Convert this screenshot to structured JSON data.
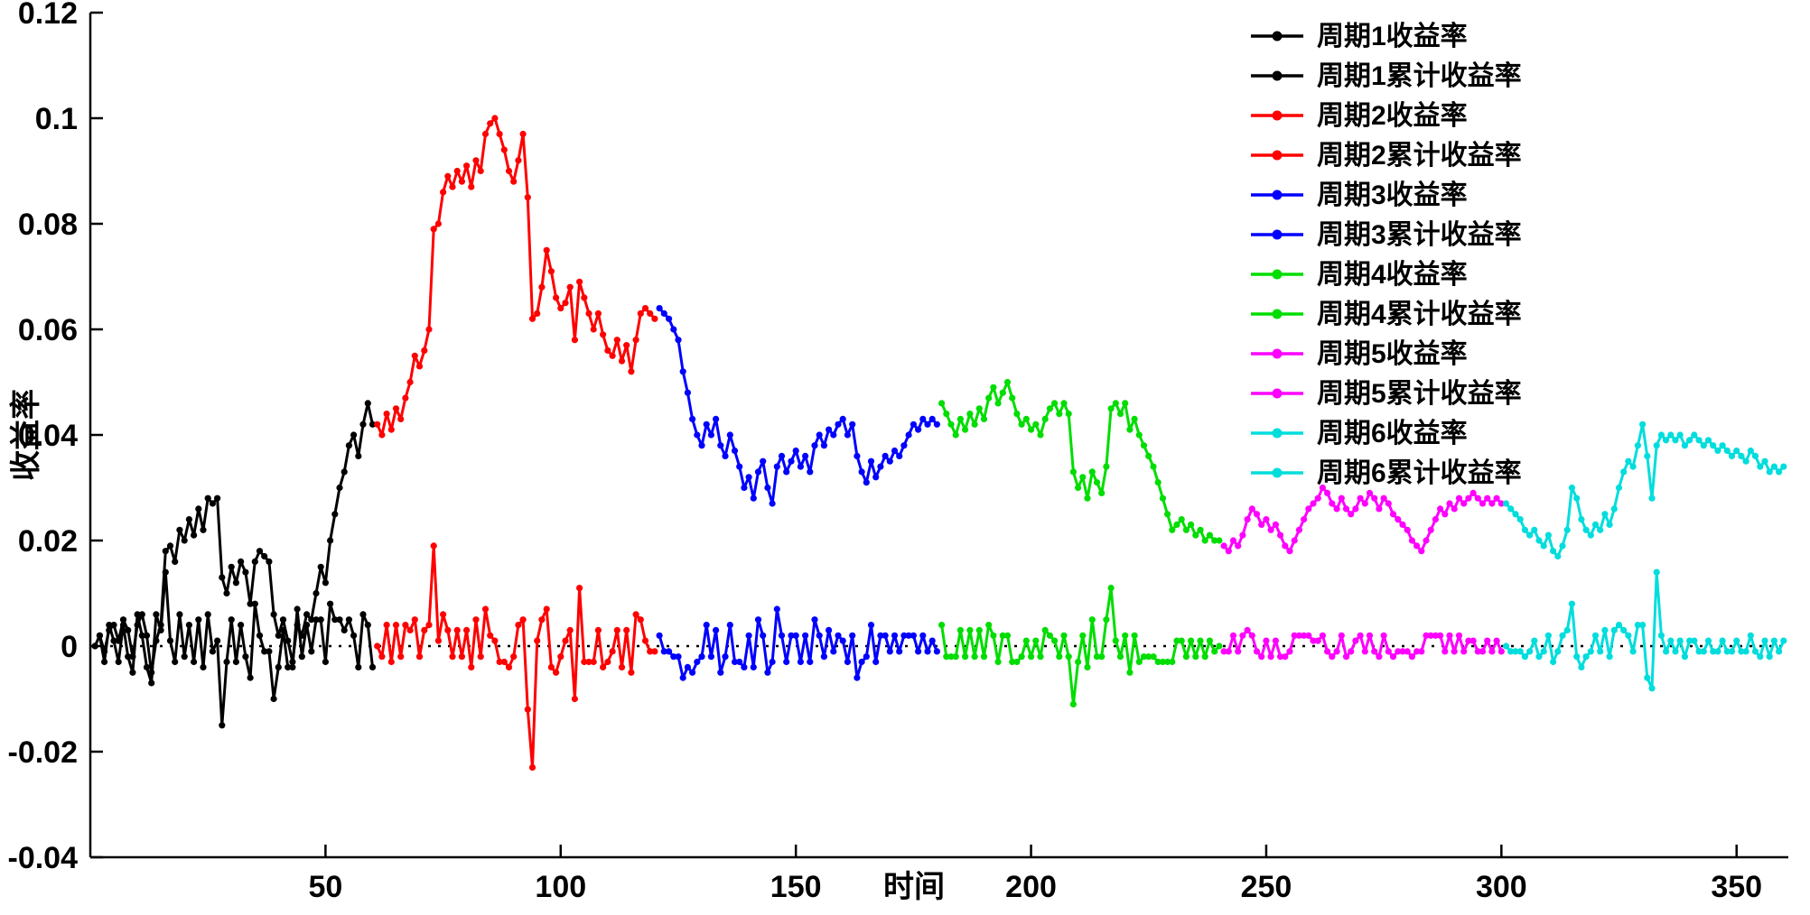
{
  "figure": {
    "background": "#ffffff",
    "axis_color": "#000000",
    "xlim": [
      0,
      361
    ],
    "ylim": [
      -0.04,
      0.12
    ],
    "x_ticks": [
      {
        "value": 50,
        "label": "50"
      },
      {
        "value": 100,
        "label": "100"
      },
      {
        "value": 150,
        "label": "150"
      },
      {
        "value": 200,
        "label": "200"
      },
      {
        "value": 250,
        "label": "250"
      },
      {
        "value": 300,
        "label": "300"
      },
      {
        "value": 350,
        "label": "350"
      }
    ],
    "y_ticks": [
      {
        "value": -0.04,
        "label": "-0.04"
      },
      {
        "value": -0.02,
        "label": "-0.02"
      },
      {
        "value": 0,
        "label": "0"
      },
      {
        "value": 0.02,
        "label": "0.02"
      },
      {
        "value": 0.04,
        "label": "0.04"
      },
      {
        "value": 0.06,
        "label": "0.06"
      },
      {
        "value": 0.08,
        "label": "0.08"
      },
      {
        "value": 0.1,
        "label": "0.1"
      },
      {
        "value": 0.12,
        "label": "0.12"
      }
    ]
  },
  "chart_data": {
    "type": "line",
    "title": "",
    "xlabel": "时间",
    "ylabel": "收益率",
    "xlim": [
      1,
      360
    ],
    "ylim": [
      -0.04,
      0.12
    ],
    "grid": false,
    "zero_line": true,
    "legend_position": "top-right",
    "marker": "point",
    "series": [
      {
        "name": "周期1收益率",
        "color": "#000000",
        "x_start": 1,
        "values": [
          0.0,
          0.002,
          -0.003,
          0.004,
          0.001,
          -0.003,
          0.004,
          -0.002,
          -0.005,
          0.006,
          0.002,
          -0.004,
          -0.007,
          0.006,
          0.003,
          0.014,
          0.001,
          -0.003,
          0.006,
          -0.002,
          0.004,
          -0.003,
          0.005,
          -0.004,
          0.006,
          -0.001,
          0.001,
          -0.015,
          -0.003,
          0.005,
          -0.003,
          0.004,
          -0.002,
          -0.006,
          0.008,
          0.002,
          -0.001,
          -0.001,
          -0.01,
          -0.004,
          0.003,
          -0.004,
          -0.004,
          0.007,
          -0.002,
          0.004,
          -0.001,
          0.005,
          0.005,
          -0.003,
          0.008,
          0.005,
          0.005,
          0.003,
          0.005,
          0.002,
          -0.004,
          0.006,
          0.004,
          -0.004
        ]
      },
      {
        "name": "周期1累计收益率",
        "color": "#000000",
        "x_start": 1,
        "values": [
          0.0,
          0.002,
          -0.001,
          0.003,
          0.004,
          0.001,
          0.005,
          0.003,
          -0.002,
          0.004,
          0.006,
          0.002,
          -0.005,
          0.001,
          0.004,
          0.018,
          0.019,
          0.016,
          0.022,
          0.02,
          0.024,
          0.021,
          0.026,
          0.022,
          0.028,
          0.027,
          0.028,
          0.013,
          0.01,
          0.015,
          0.012,
          0.016,
          0.014,
          0.008,
          0.016,
          0.018,
          0.017,
          0.016,
          0.006,
          0.002,
          0.005,
          0.001,
          -0.003,
          0.004,
          0.002,
          0.006,
          0.005,
          0.01,
          0.015,
          0.012,
          0.02,
          0.025,
          0.03,
          0.033,
          0.038,
          0.04,
          0.036,
          0.042,
          0.046,
          0.042
        ]
      },
      {
        "name": "周期2收益率",
        "color": "#ff0000",
        "x_start": 61,
        "values": [
          0.0,
          -0.002,
          0.004,
          -0.003,
          0.004,
          -0.002,
          0.004,
          0.003,
          0.005,
          -0.002,
          0.003,
          0.004,
          0.019,
          0.001,
          0.006,
          0.003,
          -0.002,
          0.003,
          -0.002,
          0.003,
          -0.004,
          0.005,
          -0.002,
          0.007,
          0.002,
          0.001,
          -0.003,
          -0.003,
          -0.004,
          -0.002,
          0.004,
          0.005,
          -0.012,
          -0.023,
          0.001,
          0.005,
          0.007,
          -0.004,
          -0.005,
          -0.002,
          0.001,
          0.003,
          -0.01,
          0.011,
          -0.003,
          -0.003,
          -0.003,
          0.003,
          -0.004,
          -0.003,
          -0.001,
          0.003,
          -0.004,
          0.003,
          -0.005,
          0.006,
          0.005,
          0.001,
          -0.001,
          -0.001
        ]
      },
      {
        "name": "周期2累计收益率",
        "color": "#ff0000",
        "x_start": 61,
        "values": [
          0.042,
          0.04,
          0.044,
          0.041,
          0.045,
          0.043,
          0.047,
          0.05,
          0.055,
          0.053,
          0.056,
          0.06,
          0.079,
          0.08,
          0.086,
          0.089,
          0.087,
          0.09,
          0.088,
          0.091,
          0.087,
          0.092,
          0.09,
          0.097,
          0.099,
          0.1,
          0.097,
          0.094,
          0.09,
          0.088,
          0.092,
          0.097,
          0.085,
          0.062,
          0.063,
          0.068,
          0.075,
          0.071,
          0.066,
          0.064,
          0.065,
          0.068,
          0.058,
          0.069,
          0.066,
          0.063,
          0.06,
          0.063,
          0.059,
          0.056,
          0.055,
          0.058,
          0.054,
          0.057,
          0.052,
          0.058,
          0.063,
          0.064,
          0.063,
          0.062
        ]
      },
      {
        "name": "周期3收益率",
        "color": "#0000ff",
        "x_start": 121,
        "values": [
          0.002,
          -0.001,
          -0.001,
          -0.002,
          -0.002,
          -0.006,
          -0.004,
          -0.005,
          -0.003,
          -0.002,
          0.004,
          -0.002,
          0.003,
          -0.005,
          -0.002,
          0.004,
          -0.003,
          -0.003,
          -0.004,
          0.002,
          -0.004,
          0.005,
          0.002,
          -0.005,
          -0.003,
          0.007,
          0.002,
          -0.003,
          0.002,
          0.002,
          -0.003,
          0.002,
          -0.003,
          0.005,
          0.002,
          -0.002,
          0.003,
          -0.001,
          0.002,
          0.001,
          -0.003,
          0.002,
          -0.006,
          -0.003,
          -0.002,
          0.004,
          -0.003,
          0.002,
          0.002,
          -0.001,
          0.002,
          -0.001,
          0.002,
          0.002,
          0.002,
          -0.001,
          0.002,
          -0.001,
          0.001,
          -0.001
        ]
      },
      {
        "name": "周期3累计收益率",
        "color": "#0000ff",
        "x_start": 121,
        "values": [
          0.064,
          0.063,
          0.062,
          0.06,
          0.058,
          0.052,
          0.048,
          0.043,
          0.04,
          0.038,
          0.042,
          0.04,
          0.043,
          0.038,
          0.036,
          0.04,
          0.037,
          0.034,
          0.03,
          0.032,
          0.028,
          0.033,
          0.035,
          0.03,
          0.027,
          0.034,
          0.036,
          0.033,
          0.035,
          0.037,
          0.034,
          0.036,
          0.033,
          0.038,
          0.04,
          0.038,
          0.041,
          0.04,
          0.042,
          0.043,
          0.04,
          0.042,
          0.036,
          0.033,
          0.031,
          0.035,
          0.032,
          0.034,
          0.036,
          0.035,
          0.037,
          0.036,
          0.038,
          0.04,
          0.042,
          0.041,
          0.043,
          0.042,
          0.043,
          0.042
        ]
      },
      {
        "name": "周期4收益率",
        "color": "#00dd00",
        "x_start": 181,
        "values": [
          0.004,
          -0.002,
          -0.002,
          -0.002,
          0.003,
          -0.002,
          0.003,
          -0.002,
          0.003,
          -0.002,
          0.004,
          0.002,
          -0.003,
          0.002,
          0.002,
          -0.003,
          -0.003,
          -0.002,
          0.001,
          -0.002,
          0.001,
          -0.002,
          0.003,
          0.002,
          0.001,
          -0.002,
          0.002,
          -0.002,
          -0.011,
          -0.003,
          0.002,
          -0.004,
          0.005,
          -0.002,
          -0.002,
          0.005,
          0.011,
          0.001,
          -0.002,
          0.002,
          -0.005,
          0.002,
          -0.003,
          -0.002,
          -0.002,
          -0.002,
          -0.003,
          -0.003,
          -0.003,
          -0.003,
          0.001,
          0.001,
          -0.002,
          0.001,
          -0.002,
          0.001,
          -0.002,
          0.001,
          -0.001,
          0.0
        ]
      },
      {
        "name": "周期4累计收益率",
        "color": "#00dd00",
        "x_start": 181,
        "values": [
          0.046,
          0.044,
          0.042,
          0.04,
          0.043,
          0.041,
          0.044,
          0.042,
          0.045,
          0.043,
          0.047,
          0.049,
          0.046,
          0.048,
          0.05,
          0.047,
          0.044,
          0.042,
          0.043,
          0.041,
          0.042,
          0.04,
          0.043,
          0.045,
          0.046,
          0.044,
          0.046,
          0.044,
          0.033,
          0.03,
          0.032,
          0.028,
          0.033,
          0.031,
          0.029,
          0.034,
          0.045,
          0.046,
          0.044,
          0.046,
          0.041,
          0.043,
          0.04,
          0.038,
          0.036,
          0.034,
          0.031,
          0.028,
          0.025,
          0.022,
          0.023,
          0.024,
          0.022,
          0.023,
          0.021,
          0.022,
          0.02,
          0.021,
          0.02,
          0.02
        ]
      },
      {
        "name": "周期5收益率",
        "color": "#ff00ff",
        "x_start": 241,
        "values": [
          -0.001,
          -0.001,
          0.002,
          -0.001,
          0.002,
          0.003,
          0.002,
          -0.001,
          -0.002,
          0.001,
          -0.002,
          0.001,
          -0.002,
          -0.002,
          -0.001,
          0.002,
          0.002,
          0.002,
          0.002,
          0.001,
          0.001,
          0.002,
          -0.001,
          -0.002,
          -0.001,
          0.002,
          -0.002,
          -0.001,
          0.001,
          0.002,
          -0.001,
          0.002,
          -0.001,
          -0.002,
          0.002,
          -0.001,
          -0.002,
          -0.001,
          -0.001,
          -0.001,
          -0.002,
          -0.001,
          -0.001,
          0.002,
          0.002,
          0.002,
          0.002,
          -0.001,
          0.002,
          -0.001,
          0.002,
          -0.001,
          0.001,
          0.001,
          -0.001,
          -0.001,
          0.001,
          -0.001,
          0.001,
          -0.001
        ]
      },
      {
        "name": "周期5累计收益率",
        "color": "#ff00ff",
        "x_start": 241,
        "values": [
          0.019,
          0.018,
          0.02,
          0.019,
          0.021,
          0.024,
          0.026,
          0.025,
          0.023,
          0.024,
          0.022,
          0.023,
          0.021,
          0.019,
          0.018,
          0.02,
          0.022,
          0.024,
          0.026,
          0.027,
          0.028,
          0.03,
          0.029,
          0.027,
          0.026,
          0.028,
          0.026,
          0.025,
          0.026,
          0.028,
          0.027,
          0.029,
          0.028,
          0.026,
          0.028,
          0.027,
          0.025,
          0.024,
          0.023,
          0.022,
          0.02,
          0.019,
          0.018,
          0.02,
          0.022,
          0.024,
          0.026,
          0.025,
          0.027,
          0.026,
          0.028,
          0.027,
          0.028,
          0.029,
          0.028,
          0.027,
          0.028,
          0.027,
          0.028,
          0.027
        ]
      },
      {
        "name": "周期6收益率",
        "color": "#00dddd",
        "x_start": 301,
        "values": [
          0.0,
          -0.001,
          -0.001,
          -0.001,
          -0.002,
          -0.001,
          0.001,
          -0.002,
          -0.001,
          0.002,
          -0.003,
          -0.001,
          0.002,
          0.003,
          0.008,
          -0.002,
          -0.004,
          -0.002,
          -0.001,
          0.002,
          -0.001,
          0.003,
          -0.002,
          0.003,
          0.004,
          0.003,
          0.002,
          -0.001,
          0.004,
          0.004,
          -0.006,
          -0.008,
          0.014,
          0.002,
          -0.001,
          0.001,
          -0.001,
          0.001,
          -0.002,
          0.001,
          0.001,
          -0.001,
          -0.001,
          0.001,
          -0.001,
          -0.001,
          0.001,
          -0.001,
          -0.001,
          0.001,
          -0.001,
          -0.001,
          0.002,
          -0.001,
          -0.002,
          0.001,
          -0.002,
          0.001,
          -0.001,
          0.001
        ]
      },
      {
        "name": "周期6累计收益率",
        "color": "#00dddd",
        "x_start": 301,
        "values": [
          0.027,
          0.026,
          0.025,
          0.024,
          0.022,
          0.021,
          0.022,
          0.02,
          0.019,
          0.021,
          0.018,
          0.017,
          0.019,
          0.022,
          0.03,
          0.028,
          0.024,
          0.022,
          0.021,
          0.023,
          0.022,
          0.025,
          0.023,
          0.026,
          0.03,
          0.033,
          0.035,
          0.034,
          0.038,
          0.042,
          0.036,
          0.028,
          0.038,
          0.04,
          0.039,
          0.04,
          0.039,
          0.04,
          0.038,
          0.039,
          0.04,
          0.039,
          0.038,
          0.039,
          0.038,
          0.037,
          0.038,
          0.037,
          0.036,
          0.037,
          0.036,
          0.035,
          0.037,
          0.036,
          0.034,
          0.035,
          0.033,
          0.034,
          0.033,
          0.034
        ]
      }
    ]
  }
}
